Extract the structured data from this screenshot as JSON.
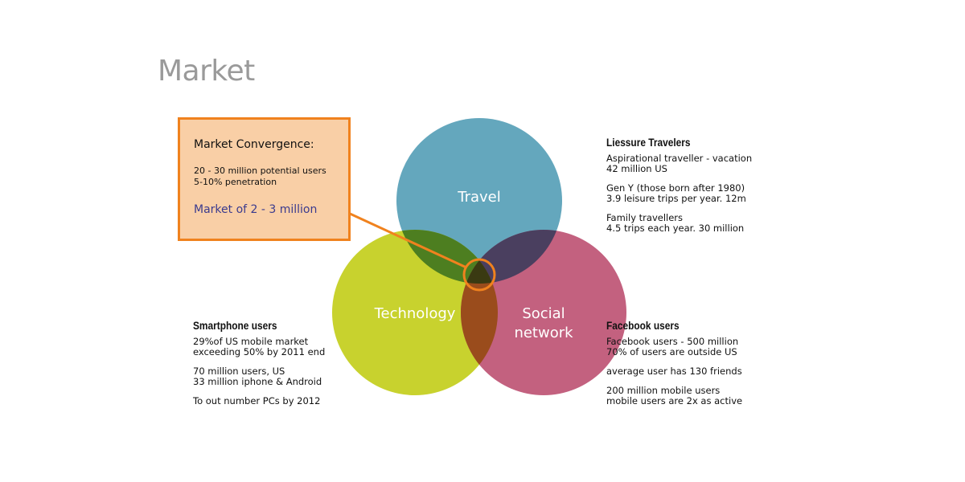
{
  "title": "Market",
  "colors": {
    "travel": "#64a7bd",
    "technology": "#c8d22e",
    "social": "#c3617f",
    "travel_tech_overlap": "#4d7e20",
    "travel_social_overlap": "#4a3f5f",
    "tech_social_overlap": "#9a4c1c",
    "center_overlap": "#3a3a12",
    "accent": "#f0821e",
    "callout_fill": "#f9cfa6"
  },
  "venn": {
    "travel_label": "Travel",
    "technology_label": "Technology",
    "social_label_line1": "Social",
    "social_label_line2": "network"
  },
  "callout": {
    "heading": "Market Convergence:",
    "line1": "20 - 30 million potential users",
    "line2": "5-10% penetration",
    "highlight": "Market of 2 - 3 million"
  },
  "leisure": {
    "heading": "Liessure Travelers",
    "l1": "Aspirational traveller - vacation",
    "l2": "42 million US",
    "l3": "Gen Y (those born after 1980)",
    "l4": "3.9 leisure trips per year. 12m",
    "l5": "Family travellers",
    "l6": "4.5 trips each year. 30 million"
  },
  "smartphone": {
    "heading": "Smartphone users",
    "l1": "29%of US mobile market",
    "l2": "exceeding 50% by 2011 end",
    "l3": "70 million users, US",
    "l4": "33 million iphone & Android",
    "l5": "To out number PCs by 2012"
  },
  "facebook": {
    "heading": "Facebook users",
    "l1": "Facebook users - 500 million",
    "l2": "70% of users are outside US",
    "l3": "average user has 130 friends",
    "l4": "200 million mobile users",
    "l5": "mobile users are 2x as active"
  }
}
